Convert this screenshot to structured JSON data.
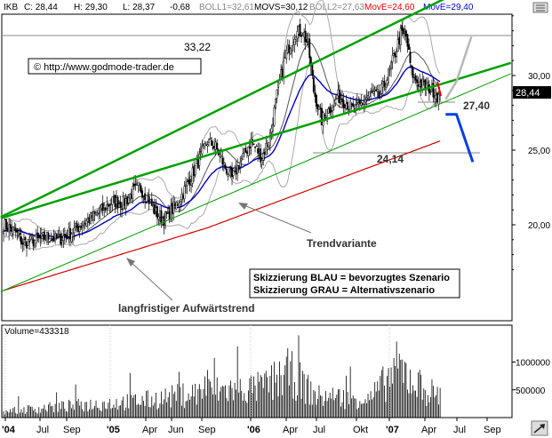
{
  "header": {
    "symbol": "IKB",
    "c": "C: 28,44",
    "h": "H: 29,30",
    "l": "L: 28,37",
    "chg": "-0,68",
    "boll1": "BOLL1=32,61",
    "movs": "MOVS=30,12",
    "boll2": "BOLL2=27,63",
    "move1": "MovE=24,60",
    "move2": "MovE=29,40",
    "colors": {
      "move1": "#e00000",
      "move2": "#0000d0",
      "boll": "#999999"
    }
  },
  "copyright": "© http://www.godmode-trader.de",
  "labels": {
    "high_value": "33,22",
    "low_value": "24,14",
    "target_blue": "27,40",
    "trend_variant": "Trendvariante",
    "long_trend": "langfristiger Aufwärtstrend",
    "legend_blue": "Skizzierung BLAU = bevorzugtes Szenario",
    "legend_gray": "Skizzierung GRAU = Alternativszenario",
    "last_price": "28,44",
    "volume_label": "Volume=433318"
  },
  "chart_data": {
    "type": "candlestick",
    "ylim": [
      15.5,
      35.0
    ],
    "y_ticks": [
      "30,00",
      "25,00",
      "20,00"
    ],
    "x_ticks": [
      "'04",
      "Jul",
      "Sep",
      "'05",
      "Apr",
      "Jun",
      "Sep",
      "'06",
      "Apr",
      "Jul",
      "Okt",
      "'07",
      "Apr",
      "Jul",
      "Sep"
    ],
    "volume_ticks": [
      "1000000",
      "500000"
    ],
    "volume_ylim": [
      0,
      1600000
    ],
    "levels": {
      "high": 33.22,
      "low": 24.14,
      "target_blue": 27.4,
      "last": 28.44
    },
    "price_anchors": [
      [
        0,
        20.0
      ],
      [
        8,
        19.6
      ],
      [
        14,
        18.8
      ],
      [
        22,
        18.9
      ],
      [
        32,
        19.2
      ],
      [
        40,
        19.0
      ],
      [
        50,
        19.5
      ],
      [
        60,
        20.2
      ],
      [
        70,
        20.8
      ],
      [
        80,
        21.6
      ],
      [
        88,
        21.4
      ],
      [
        95,
        22.2
      ],
      [
        100,
        22.5
      ],
      [
        106,
        21.8
      ],
      [
        112,
        20.8
      ],
      [
        118,
        20.4
      ],
      [
        126,
        21.2
      ],
      [
        134,
        22.5
      ],
      [
        142,
        24.0
      ],
      [
        150,
        25.6
      ],
      [
        156,
        25.2
      ],
      [
        162,
        24.0
      ],
      [
        168,
        23.1
      ],
      [
        174,
        24.2
      ],
      [
        182,
        25.6
      ],
      [
        190,
        24.5
      ],
      [
        196,
        26.0
      ],
      [
        202,
        29.2
      ],
      [
        208,
        31.5
      ],
      [
        214,
        32.8
      ],
      [
        220,
        33.0
      ],
      [
        224,
        32.0
      ],
      [
        228,
        29.0
      ],
      [
        234,
        27.0
      ],
      [
        240,
        27.8
      ],
      [
        246,
        28.6
      ],
      [
        252,
        28.2
      ],
      [
        258,
        27.6
      ],
      [
        264,
        28.2
      ],
      [
        270,
        28.8
      ],
      [
        276,
        28.6
      ],
      [
        282,
        29.8
      ],
      [
        288,
        31.5
      ],
      [
        292,
        32.8
      ],
      [
        296,
        32.6
      ],
      [
        300,
        30.2
      ],
      [
        304,
        29.6
      ],
      [
        310,
        29.3
      ],
      [
        316,
        29.0
      ],
      [
        321,
        28.44
      ]
    ],
    "volume_anchors": [
      [
        0,
        120000
      ],
      [
        60,
        240000
      ],
      [
        110,
        340000
      ],
      [
        150,
        500000
      ],
      [
        190,
        560000
      ],
      [
        210,
        850000
      ],
      [
        230,
        400000
      ],
      [
        270,
        360000
      ],
      [
        290,
        950000
      ],
      [
        310,
        520000
      ],
      [
        321,
        430000
      ]
    ],
    "trendlines": [
      {
        "name": "langfristiger Aufwärtstrend",
        "color": "#00a000",
        "points": [
          [
            0,
            20.5
          ],
          [
            321,
            29.4
          ]
        ]
      },
      {
        "name": "Trendvariante",
        "color": "#00a000",
        "points": [
          [
            0,
            15.6
          ],
          [
            321,
            28.1
          ]
        ]
      },
      {
        "name": "upper channel",
        "color": "#00a000",
        "points": [
          [
            0,
            20.6
          ],
          [
            321,
            35.0
          ]
        ]
      }
    ],
    "scenario_blue": [
      [
        325,
        27.4
      ],
      [
        333,
        27.4
      ],
      [
        345,
        24.2
      ]
    ],
    "scenario_gray": [
      [
        325,
        28.4
      ],
      [
        333,
        29.6
      ],
      [
        344,
        32.6
      ]
    ]
  }
}
